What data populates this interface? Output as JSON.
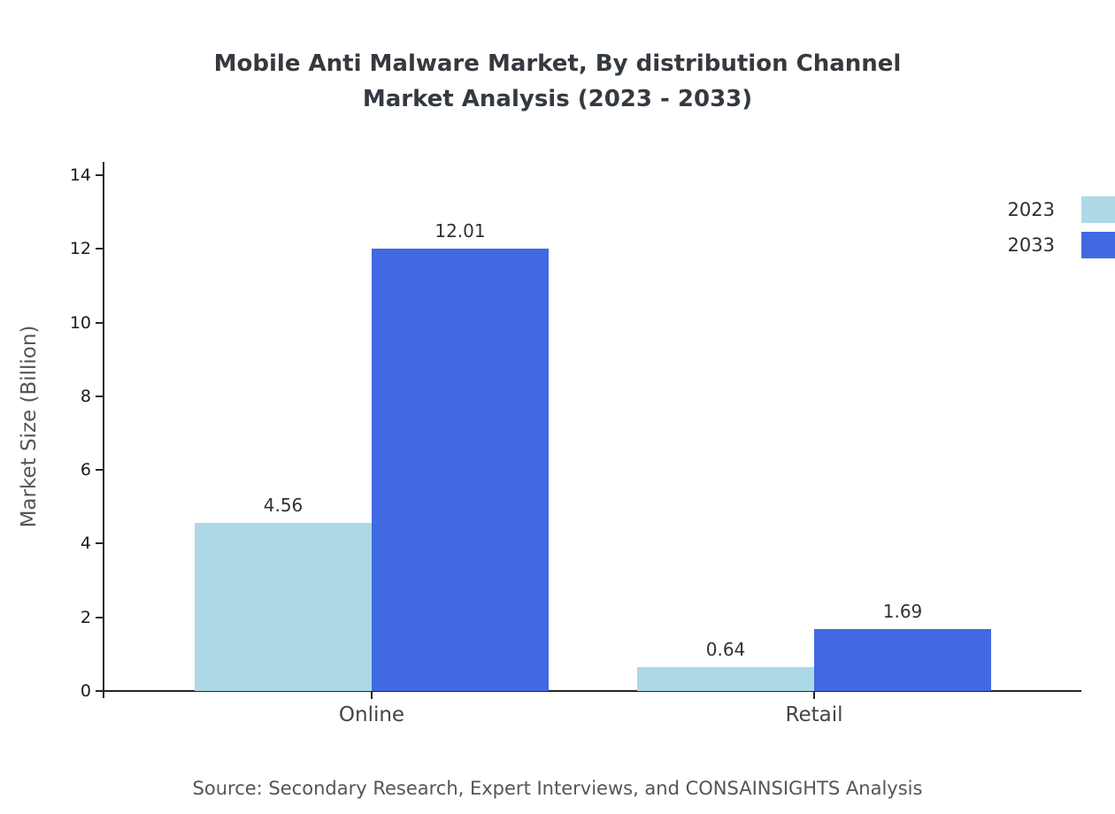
{
  "title_line1": "Mobile Anti Malware Market, By distribution Channel",
  "title_line2": "Market Analysis (2023 - 2033)",
  "source": "Source: Secondary Research, Expert Interviews, and CONSAINSIGHTS Analysis",
  "chart_data": {
    "type": "bar",
    "title": "Mobile Anti Malware Market, By distribution Channel Market Analysis (2023 - 2033)",
    "categories": [
      "Online",
      "Retail"
    ],
    "series": [
      {
        "name": "2023",
        "color": "#ADD8E6",
        "values": [
          4.56,
          0.64
        ]
      },
      {
        "name": "2033",
        "color": "#4169E1",
        "values": [
          12.01,
          1.69
        ]
      }
    ],
    "xlabel": "",
    "ylabel": "Market Size (Billion)",
    "ylim": [
      0,
      14
    ],
    "yticks": [
      0,
      2,
      4,
      6,
      8,
      10,
      12,
      14
    ],
    "grid": false,
    "legend_position": "top-right"
  }
}
